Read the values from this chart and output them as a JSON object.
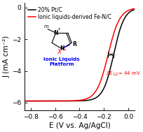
{
  "title": "",
  "xlabel": "E (V vs. Ag/AgCl)",
  "ylabel": "J (mA cm⁻²)",
  "xlim": [
    -0.85,
    0.05
  ],
  "ylim": [
    -6.5,
    0.3
  ],
  "background_color": "#ffffff",
  "line_black_label": "20% Pt/C",
  "line_red_label": "Ionic liquids-derived Fe-N/C",
  "E_half_black": -0.12,
  "E_half_red": -0.165,
  "J_lim": -5.9,
  "J_half": -2.95,
  "tick_label_size": 6.5,
  "axis_label_size": 7.5,
  "legend_fontsize": 5.5
}
